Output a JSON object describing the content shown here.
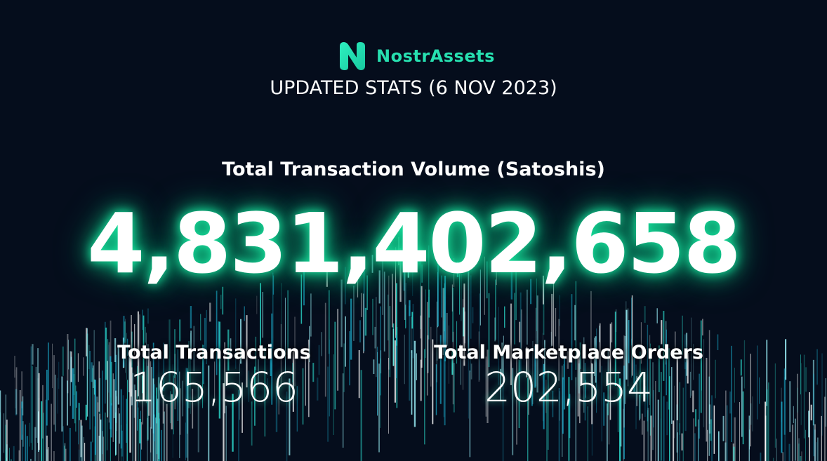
{
  "brand": {
    "name": "NostrAssets",
    "color": "#27e0b0"
  },
  "subtitle": "UPDATED STATS (6 NOV 2023)",
  "volume": {
    "label": "Total Transaction Volume (Satoshis)",
    "value": "4,831,402,658",
    "glow_color": "#19e6a0"
  },
  "stats": [
    {
      "label": "Total Transactions",
      "value": "165,566"
    },
    {
      "label": "Total Marketplace Orders",
      "value": "202,554"
    }
  ],
  "background": {
    "color": "#050d1c",
    "streak_colors": [
      "#2ee6d6",
      "#9ff7ff",
      "#1aa8c8",
      "#ffffff"
    ]
  }
}
